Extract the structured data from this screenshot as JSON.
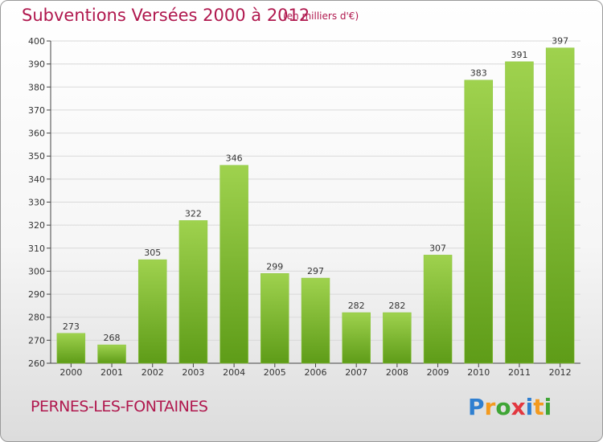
{
  "chart_data": {
    "type": "bar",
    "title": "Subventions Versées 2000 à 2012",
    "subtitle": "(en milliers d'€)",
    "categories": [
      "2000",
      "2001",
      "2002",
      "2003",
      "2004",
      "2005",
      "2006",
      "2007",
      "2008",
      "2009",
      "2010",
      "2011",
      "2012"
    ],
    "values": [
      273,
      268,
      305,
      322,
      346,
      299,
      297,
      282,
      282,
      307,
      383,
      391,
      397
    ],
    "ylim": [
      260,
      400
    ],
    "yticks": [
      260,
      270,
      280,
      290,
      300,
      310,
      320,
      330,
      340,
      350,
      360,
      370,
      380,
      390,
      400
    ],
    "xlabel": "",
    "ylabel": "",
    "grid": true,
    "colors": {
      "bar_top": "#9fd24e",
      "bar_bottom": "#5e9c18",
      "title": "#b0184e",
      "grid": "#d9d9d9"
    }
  },
  "footer": {
    "commune": "PERNES-LES-FONTAINES",
    "brand": "Proxiti"
  }
}
